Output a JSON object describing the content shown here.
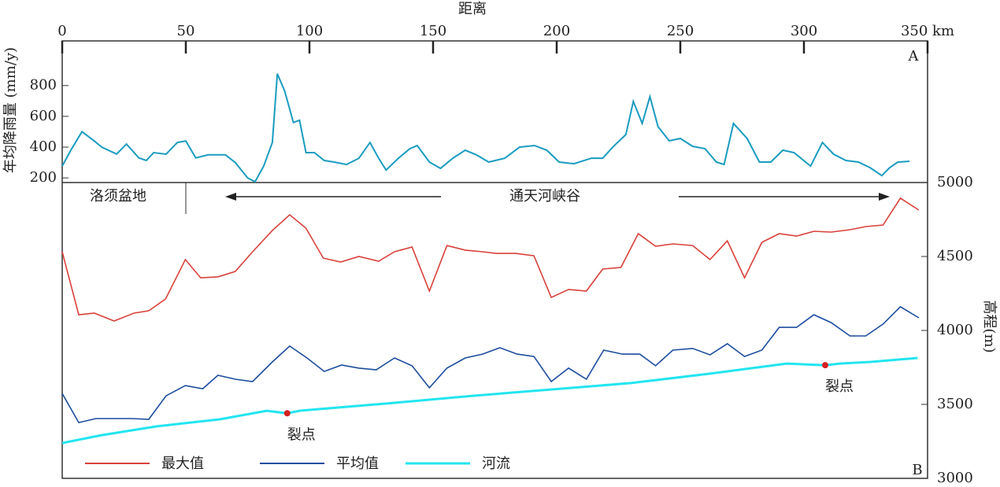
{
  "chart_data": [
    {
      "type": "line",
      "xlabel": "距离",
      "ylabel": "年均降雨量 (mm/y)",
      "panel_label": "A",
      "xlim": [
        0,
        350
      ],
      "xticks": [
        0,
        50,
        100,
        150,
        200,
        250,
        300,
        {
          "value": 350,
          "label": "350 km"
        }
      ],
      "ylim": [
        170,
        1090
      ],
      "yticks": [
        200,
        400,
        600,
        800
      ],
      "axis_color": "#1a9cc0",
      "series": [
        {
          "color": "#1a9cc0",
          "x": [
            0,
            3.5,
            8,
            13,
            16,
            22,
            26,
            31,
            34,
            37,
            42,
            46.6,
            50,
            54,
            59,
            66,
            70,
            75,
            78,
            81.5,
            85,
            87,
            90,
            93.5,
            96,
            98.6,
            102,
            106,
            110,
            115,
            120,
            124.5,
            128,
            131,
            136,
            140.6,
            143.6,
            148.5,
            153,
            158,
            163,
            167.5,
            172.5,
            179,
            185,
            191,
            196,
            201,
            207,
            214,
            218.6,
            223,
            228,
            231,
            234.6,
            237.7,
            241,
            245.5,
            250,
            255,
            260,
            264.6,
            267.7,
            271.5,
            277,
            282,
            286.6,
            291.5,
            296,
            302.7,
            307.5,
            312,
            317,
            322,
            326.7,
            331.5,
            334.7,
            338,
            342.7
          ],
          "values": [
            277,
            380,
            500,
            440,
            400,
            355,
            420,
            330,
            313,
            364,
            354,
            430,
            440,
            330,
            350,
            350,
            300,
            200,
            175,
            277,
            430,
            877,
            764,
            560,
            575,
            364,
            364,
            313,
            303,
            287,
            328,
            430,
            328,
            251,
            328,
            390,
            410,
            303,
            262,
            328,
            380,
            350,
            303,
            328,
            400,
            410,
            380,
            303,
            292,
            328,
            328,
            405,
            482,
            697,
            554,
            728,
            533,
            441,
            456,
            405,
            390,
            303,
            287,
            554,
            456,
            303,
            303,
            380,
            364,
            277,
            430,
            354,
            313,
            303,
            267,
            215,
            267,
            303,
            308
          ]
        }
      ]
    },
    {
      "type": "line",
      "ylabel": "高程(m)",
      "panel_label": "B",
      "xlim": [
        0,
        350
      ],
      "ylim": [
        3000,
        5000
      ],
      "yticks": [
        3000,
        3500,
        4000,
        4500,
        5000
      ],
      "annotations": [
        "洛须盆地",
        "通天河峡谷"
      ],
      "series": [
        {
          "name": "最大值",
          "color": "#d9413a",
          "x": [
            0,
            6.7,
            13,
            21,
            29,
            35,
            41.8,
            49.8,
            56,
            63,
            70,
            77,
            85,
            92,
            98.6,
            105.6,
            112.6,
            120,
            128,
            134.4,
            141.5,
            148.5,
            155.6,
            163,
            170,
            175.5,
            183.4,
            190.8,
            197.8,
            204.8,
            212,
            218.6,
            226,
            233,
            240,
            247,
            255,
            262,
            269,
            276,
            283,
            290,
            297,
            304,
            311,
            318.6,
            325,
            332,
            339,
            346.5
          ],
          "values": [
            4532,
            4106,
            4117,
            4064,
            4117,
            4133,
            4213,
            4479,
            4356,
            4362,
            4399,
            4532,
            4676,
            4782,
            4691,
            4489,
            4463,
            4500,
            4468,
            4532,
            4564,
            4266,
            4574,
            4543,
            4532,
            4521,
            4521,
            4505,
            4223,
            4277,
            4266,
            4415,
            4426,
            4654,
            4569,
            4585,
            4574,
            4479,
            4606,
            4356,
            4596,
            4654,
            4638,
            4670,
            4665,
            4681,
            4702,
            4713,
            4894,
            4814
          ]
        },
        {
          "name": "平均值",
          "color": "#1c4d9e",
          "x": [
            0,
            6.7,
            13.7,
            21,
            28,
            35,
            42,
            49.8,
            56.8,
            63,
            70,
            77,
            85,
            92,
            99,
            106,
            113,
            120,
            127,
            134.4,
            141.5,
            148.5,
            155.6,
            163,
            170,
            177,
            184,
            190.8,
            197.8,
            204.8,
            212,
            219,
            226.6,
            233.6,
            240,
            247,
            255,
            262,
            269,
            276,
            283,
            290,
            297,
            304,
            311,
            318.6,
            325,
            332,
            339,
            346.5
          ],
          "values": [
            3574,
            3377,
            3404,
            3404,
            3404,
            3399,
            3558,
            3627,
            3606,
            3697,
            3670,
            3654,
            3787,
            3894,
            3814,
            3723,
            3766,
            3745,
            3734,
            3814,
            3761,
            3612,
            3745,
            3814,
            3840,
            3883,
            3840,
            3824,
            3654,
            3745,
            3670,
            3867,
            3840,
            3840,
            3761,
            3867,
            3878,
            3835,
            3910,
            3824,
            3867,
            4021,
            4021,
            4106,
            4053,
            3963,
            3963,
            4043,
            4160,
            4085
          ]
        },
        {
          "name": "河流",
          "color": "#22e5f0",
          "x": [
            0,
            16,
            38,
            63.7,
            82.7,
            91,
            96,
            134,
            166,
            198,
            230,
            261.5,
            293,
            308.6,
            314.6,
            327,
            346
          ],
          "values": [
            3239,
            3292,
            3351,
            3399,
            3457,
            3440,
            3457,
            3510,
            3558,
            3601,
            3644,
            3707,
            3776,
            3765,
            3776,
            3787,
            3814
          ]
        }
      ],
      "knickpoints": [
        {
          "label": "裂点",
          "x": 91,
          "y": 3440
        },
        {
          "label": "裂点",
          "x": 308.6,
          "y": 3765
        }
      ]
    }
  ]
}
